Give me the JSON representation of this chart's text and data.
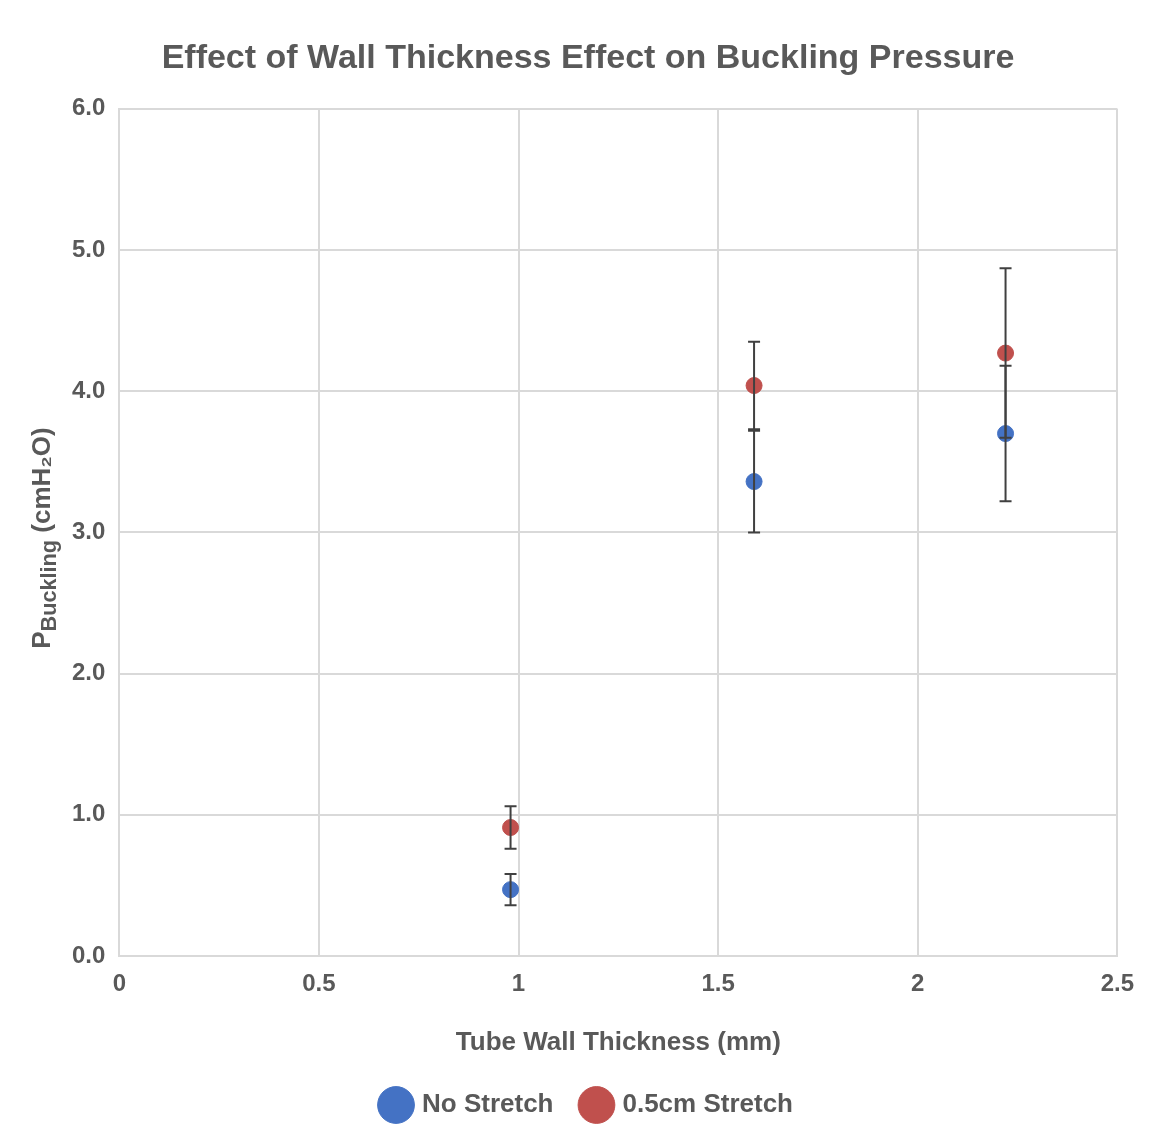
{
  "chart_data": {
    "type": "scatter",
    "title": "Effect of Wall Thickness Effect on Buckling Pressure",
    "xlabel": "Tube Wall Thickness (mm)",
    "ylabel": "P$_{Buckling}$ (cmH₂O)",
    "xlim": [
      0,
      2.5
    ],
    "xticks": [
      0,
      0.5,
      1,
      1.5,
      2,
      2.5
    ],
    "ylim": [
      0,
      6
    ],
    "yticks": [
      {
        "value": 0,
        "label": "0.0"
      },
      {
        "value": 1,
        "label": "1.0"
      },
      {
        "value": 2,
        "label": "2.0"
      },
      {
        "value": 3,
        "label": "3.0"
      },
      {
        "value": 4,
        "label": "4.0"
      },
      {
        "value": 5,
        "label": "5.0"
      },
      {
        "value": 6,
        "label": "6.0"
      }
    ],
    "grid": true,
    "legend": "bottom",
    "marker": "circle",
    "series": [
      {
        "name": "No Stretch",
        "color": "#4472c4",
        "x": [
          0.98,
          1.59,
          2.22
        ],
        "values": [
          0.47,
          3.36,
          3.7
        ],
        "errors": [
          0.11,
          0.36,
          0.48
        ]
      },
      {
        "name": "0.5cm Stretch",
        "color": "#c0504d",
        "x": [
          0.98,
          1.59,
          2.22
        ],
        "values": [
          0.91,
          4.04,
          4.27
        ],
        "errors": [
          0.15,
          0.31,
          0.6
        ]
      }
    ]
  }
}
